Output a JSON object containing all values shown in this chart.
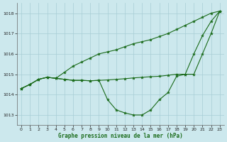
{
  "x": [
    0,
    1,
    2,
    3,
    4,
    5,
    6,
    7,
    8,
    9,
    10,
    11,
    12,
    13,
    14,
    15,
    16,
    17,
    18,
    19,
    20,
    21,
    22,
    23
  ],
  "line_top": [
    1014.3,
    1014.5,
    1014.75,
    1014.85,
    1014.8,
    1015.1,
    1015.4,
    1015.6,
    1015.8,
    1016.0,
    1016.1,
    1016.2,
    1016.35,
    1016.5,
    1016.6,
    1016.7,
    1016.85,
    1017.0,
    1017.2,
    1017.4,
    1017.6,
    1017.8,
    1018.0,
    1018.1
  ],
  "line_mid": [
    1014.3,
    1014.5,
    1014.75,
    1014.85,
    1014.8,
    1014.75,
    1014.7,
    1014.7,
    1014.68,
    1014.7,
    1014.72,
    1014.75,
    1014.78,
    1014.82,
    1014.85,
    1014.88,
    1014.9,
    1014.95,
    1015.0,
    1015.0,
    1015.0,
    1016.0,
    1017.0,
    1018.1
  ],
  "line_bot": [
    1014.3,
    1014.5,
    1014.75,
    1014.85,
    1014.8,
    1014.75,
    1014.7,
    1014.7,
    1014.68,
    1014.7,
    1013.75,
    1013.25,
    1013.1,
    1013.0,
    1013.0,
    1013.25,
    1013.75,
    1014.1,
    1014.9,
    1015.0,
    1016.0,
    1016.9,
    1017.6,
    1018.1
  ],
  "background_color": "#cce8ed",
  "grid_color": "#a8cdd5",
  "line_color": "#1a6b1a",
  "xlabel": "Graphe pression niveau de la mer (hPa)",
  "ylim": [
    1012.5,
    1018.5
  ],
  "xlim": [
    -0.5,
    23.5
  ],
  "yticks": [
    1013,
    1014,
    1015,
    1016,
    1017,
    1018
  ],
  "xticks": [
    0,
    1,
    2,
    3,
    4,
    5,
    6,
    7,
    8,
    9,
    10,
    11,
    12,
    13,
    14,
    15,
    16,
    17,
    18,
    19,
    20,
    21,
    22,
    23
  ],
  "figsize": [
    3.2,
    2.0
  ],
  "dpi": 100
}
